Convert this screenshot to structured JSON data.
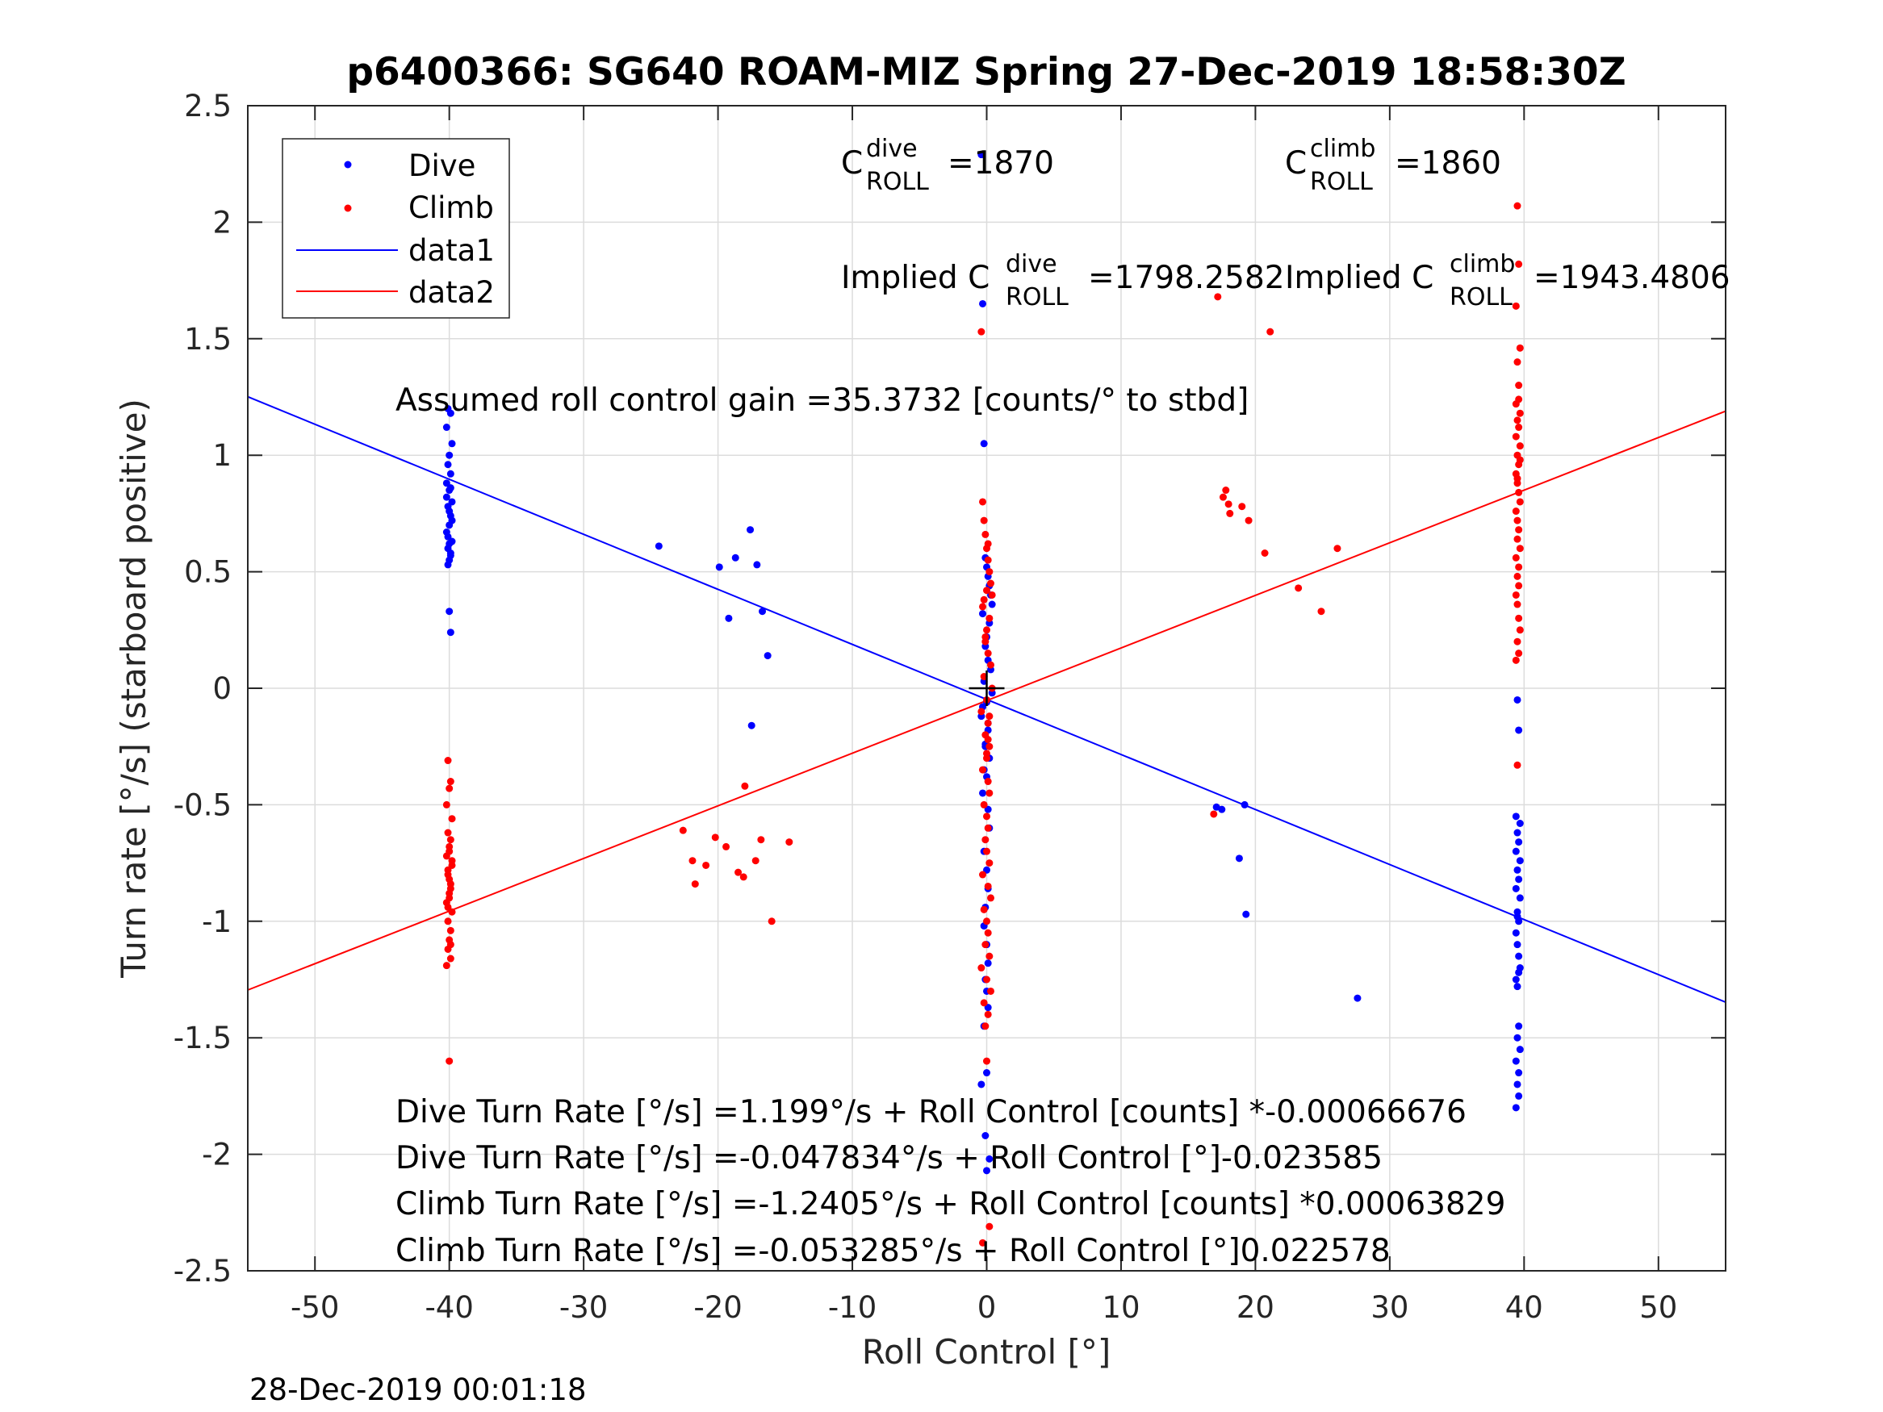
{
  "chart_data": {
    "type": "scatter",
    "title": "p6400366: SG640 ROAM-MIZ Spring 27-Dec-2019 18:58:30Z",
    "xlabel": "Roll Control [°]",
    "ylabel": "Turn rate [°/s] (starboard positive)",
    "xlim": [
      -55,
      55
    ],
    "ylim": [
      -2.5,
      2.5
    ],
    "xticks": [
      -50,
      -40,
      -30,
      -20,
      -10,
      0,
      10,
      20,
      30,
      40,
      50
    ],
    "xtick_labels": [
      "-50",
      "-40",
      "-30",
      "-20",
      "-10",
      "0",
      "10",
      "20",
      "30",
      "40",
      "50"
    ],
    "yticks": [
      -2.5,
      -2,
      -1.5,
      -1,
      -0.5,
      0,
      0.5,
      1,
      1.5,
      2,
      2.5
    ],
    "ytick_labels": [
      "-2.5",
      "-2",
      "-1.5",
      "-1",
      "-0.5",
      "0",
      "0.5",
      "1",
      "1.5",
      "2",
      "2.5"
    ],
    "grid": true,
    "legend_position": "top-left",
    "series": [
      {
        "name": "Dive",
        "kind": "points",
        "color": "#0000ff",
        "x": [
          -40.1,
          -39.9,
          -40.2,
          -39.8,
          -40.0,
          -40.1,
          -39.9,
          -40.2,
          -40.0,
          -39.8,
          -40.1,
          -39.9,
          -40.0,
          -40.2,
          -39.8,
          -40.1,
          -39.9,
          -40.0,
          -40.1,
          -39.9,
          -40.2,
          -40.0,
          -39.8,
          -40.1,
          -40.0,
          -39.9,
          -40.0,
          -39.9,
          -24.4,
          -19.9,
          -18.7,
          -17.6,
          -17.1,
          -16.7,
          -16.3,
          -19.2,
          -17.5,
          -0.4,
          -0.3,
          -0.2,
          -0.1,
          0.0,
          0.1,
          0.2,
          0.3,
          0.4,
          -0.3,
          0.2,
          0.0,
          -0.1,
          0.1,
          0.3,
          -0.2,
          0.4,
          0.0,
          -0.4,
          0.1,
          -0.1,
          0.2,
          0.0,
          -0.3,
          0.1,
          0.2,
          -0.2,
          0.0,
          0.1,
          -0.1,
          -0.2,
          0.0,
          0.1,
          -0.1,
          0.0,
          0.1,
          -0.2,
          0.0,
          -0.4,
          -0.1,
          0.2,
          0.0,
          -0.3,
          0.1,
          -0.1,
          -0.2,
          17.1,
          17.5,
          19.2,
          18.8,
          19.3,
          27.6,
          39.5,
          39.6,
          39.4,
          39.7,
          39.5,
          39.6,
          39.4,
          39.7,
          39.5,
          39.6,
          39.4,
          39.7,
          39.5,
          39.6,
          39.4,
          39.5,
          39.6,
          39.7,
          39.4,
          39.5,
          39.6,
          39.5,
          39.7,
          39.4,
          39.6,
          39.5,
          39.6,
          39.4,
          39.5,
          39.6
        ],
        "y": [
          1.2,
          1.18,
          1.12,
          1.05,
          1.0,
          0.96,
          0.92,
          0.88,
          0.85,
          0.8,
          0.78,
          0.74,
          0.7,
          0.67,
          0.63,
          0.6,
          0.57,
          0.55,
          0.53,
          0.86,
          0.82,
          0.76,
          0.72,
          0.65,
          0.62,
          0.58,
          0.33,
          0.24,
          0.61,
          0.52,
          0.56,
          0.68,
          0.53,
          0.33,
          0.14,
          0.3,
          -0.16,
          2.29,
          1.65,
          1.05,
          0.56,
          0.52,
          0.48,
          0.44,
          0.4,
          0.36,
          0.32,
          0.28,
          0.22,
          0.18,
          0.12,
          0.08,
          0.03,
          -0.02,
          -0.06,
          -0.12,
          -0.18,
          -0.24,
          -0.3,
          -0.38,
          -0.45,
          -0.52,
          -0.6,
          -0.7,
          -0.78,
          -0.86,
          -0.94,
          -1.02,
          -1.1,
          -1.18,
          -1.25,
          -1.3,
          -1.37,
          -1.45,
          -1.65,
          -1.7,
          -1.92,
          -2.02,
          -2.07,
          -0.08,
          -0.15,
          -0.25,
          -0.35,
          -0.51,
          -0.52,
          -0.5,
          -0.73,
          -0.97,
          -1.33,
          -0.05,
          -0.18,
          -0.55,
          -0.58,
          -0.62,
          -0.66,
          -0.7,
          -0.74,
          -0.78,
          -0.82,
          -0.86,
          -0.9,
          -0.96,
          -1.0,
          -1.05,
          -1.1,
          -1.15,
          -1.2,
          -1.25,
          -1.28,
          -1.45,
          -1.5,
          -1.55,
          -1.6,
          -1.65,
          -1.7,
          -1.75,
          -1.8,
          -0.98,
          -1.22
        ]
      },
      {
        "name": "Climb",
        "kind": "points",
        "color": "#ff0000",
        "x": [
          -40.1,
          -39.9,
          -40.0,
          -40.2,
          -39.8,
          -40.1,
          -39.9,
          -40.0,
          -40.2,
          -39.8,
          -40.1,
          -39.9,
          -40.0,
          -40.2,
          -39.8,
          -40.1,
          -39.9,
          -40.0,
          -40.1,
          -39.9,
          -40.2,
          -40.0,
          -39.8,
          -40.1,
          -40.0,
          -39.9,
          -40.0,
          -40.1,
          -39.9,
          -40.0,
          -22.6,
          -21.9,
          -21.7,
          -20.9,
          -20.2,
          -19.4,
          -18.5,
          -18.1,
          -17.2,
          -16.0,
          -14.7,
          -18.0,
          -16.8,
          -0.4,
          -0.3,
          -0.2,
          -0.1,
          0.0,
          0.1,
          0.2,
          0.3,
          0.4,
          -0.3,
          0.2,
          0.0,
          -0.1,
          0.1,
          0.3,
          -0.2,
          0.4,
          0.0,
          -0.4,
          0.1,
          -0.1,
          0.2,
          0.0,
          -0.3,
          0.1,
          0.2,
          -0.2,
          0.0,
          0.1,
          -0.1,
          0.0,
          0.2,
          -0.3,
          0.1,
          0.3,
          -0.2,
          0.0,
          0.1,
          -0.1,
          0.2,
          -0.4,
          0.0,
          0.3,
          -0.2,
          0.1,
          -0.1,
          0.0,
          0.2,
          -0.3,
          0.1,
          0.0,
          -0.1,
          0.2,
          0.1,
          0.0,
          -0.2,
          16.9,
          17.2,
          17.8,
          18.0,
          17.6,
          18.1,
          19.0,
          19.5,
          20.7,
          21.1,
          23.2,
          24.9,
          26.1,
          39.5,
          39.6,
          39.4,
          39.7,
          39.5,
          39.6,
          39.4,
          39.7,
          39.5,
          39.6,
          39.4,
          39.7,
          39.5,
          39.6,
          39.4,
          39.5,
          39.6,
          39.7,
          39.4,
          39.5,
          39.6,
          39.5,
          39.7,
          39.4,
          39.6,
          39.5,
          39.6,
          39.4,
          39.5,
          39.6,
          39.7,
          39.5,
          39.6,
          39.4,
          39.5,
          39.6,
          39.7,
          39.5
        ],
        "y": [
          -0.31,
          -0.4,
          -0.43,
          -0.5,
          -0.56,
          -0.62,
          -0.65,
          -0.68,
          -0.72,
          -0.76,
          -0.8,
          -0.84,
          -0.88,
          -0.92,
          -0.96,
          -1.0,
          -1.04,
          -1.08,
          -1.12,
          -1.16,
          -1.19,
          -0.7,
          -0.74,
          -0.78,
          -0.82,
          -0.86,
          -0.9,
          -0.94,
          -1.1,
          -1.6,
          -0.61,
          -0.74,
          -0.84,
          -0.76,
          -0.64,
          -0.68,
          -0.79,
          -0.81,
          -0.74,
          -1.0,
          -0.66,
          -0.42,
          -0.65,
          1.53,
          0.8,
          0.72,
          0.66,
          0.6,
          0.55,
          0.5,
          0.45,
          0.4,
          0.35,
          0.3,
          0.25,
          0.2,
          0.15,
          0.1,
          0.05,
          0.0,
          -0.05,
          -0.1,
          -0.15,
          -0.2,
          -0.25,
          -0.3,
          -0.35,
          -0.4,
          -0.45,
          -0.5,
          -0.55,
          -0.6,
          -0.65,
          -0.7,
          -0.75,
          -0.8,
          -0.85,
          -0.9,
          -0.95,
          -1.0,
          -1.05,
          -1.1,
          -1.15,
          -1.2,
          -1.25,
          -1.3,
          -1.35,
          -1.4,
          -1.45,
          -1.6,
          -2.31,
          -2.38,
          0.62,
          0.42,
          0.22,
          -0.12,
          -0.22,
          -0.28,
          0.38,
          -0.54,
          1.68,
          0.85,
          0.79,
          0.82,
          0.75,
          0.78,
          0.72,
          0.58,
          1.53,
          0.43,
          0.33,
          0.6,
          2.07,
          1.82,
          1.64,
          1.46,
          1.4,
          1.24,
          1.22,
          1.18,
          1.15,
          1.12,
          1.08,
          1.04,
          1.0,
          0.96,
          0.92,
          0.88,
          0.84,
          0.8,
          0.76,
          0.72,
          0.68,
          0.64,
          0.6,
          0.56,
          0.52,
          0.48,
          0.44,
          0.4,
          0.36,
          0.3,
          0.25,
          0.2,
          0.15,
          0.12,
          -0.33,
          1.3,
          0.98,
          0.9
        ]
      },
      {
        "name": "data1",
        "kind": "line",
        "color": "#0000ff",
        "x": [
          -55,
          55
        ],
        "y": [
          1.251,
          -1.347
        ]
      },
      {
        "name": "data2",
        "kind": "line",
        "color": "#ff0000",
        "x": [
          -55,
          55
        ],
        "y": [
          -1.295,
          1.189
        ]
      }
    ],
    "marker": {
      "x": 0,
      "y": 0
    },
    "annotations": {
      "c_dive": {
        "base": "C",
        "sup": "dive",
        "sub": "ROLL",
        "value": "=1870"
      },
      "c_climb": {
        "base": "C",
        "sup": "climb",
        "sub": "ROLL",
        "value": "=1860"
      },
      "implied_dive": {
        "base": "Implied C",
        "sup": "dive",
        "sub": "ROLL",
        "value": "=1798.2582"
      },
      "implied_climb": {
        "base": "Implied C",
        "sup": "climb",
        "sub": "ROLL",
        "value": "=1943.4806"
      },
      "gain": "Assumed roll control gain =35.3732 [counts/° to stbd]",
      "fit_lines": [
        "Dive Turn Rate [°/s] =1.199°/s + Roll Control [counts] *-0.00066676",
        "Dive Turn Rate [°/s] =-0.047834°/s + Roll Control [°]-0.023585",
        "Climb Turn Rate [°/s] =-1.2405°/s + Roll Control [counts] *0.00063829",
        "Climb Turn Rate [°/s] =-0.053285°/s + Roll Control [°]0.022578"
      ]
    },
    "timestamp": "28-Dec-2019 00:01:18"
  }
}
